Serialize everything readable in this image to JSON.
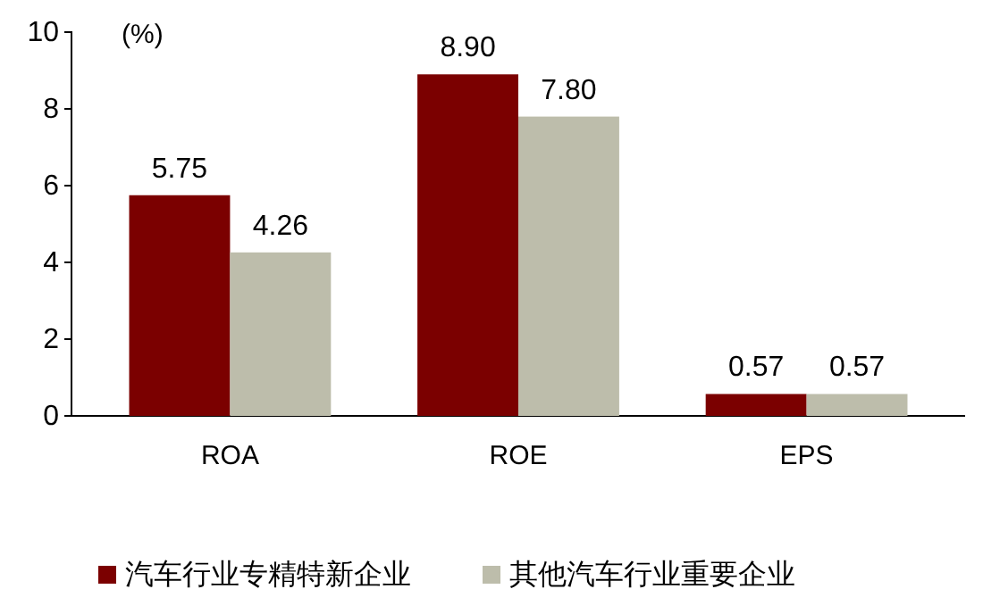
{
  "chart_data": {
    "type": "bar",
    "ylabel": "(%)",
    "categories": [
      "ROA",
      "ROE",
      "EPS"
    ],
    "series": [
      {
        "name": "汽车行业专精特新企业",
        "color": "#7b0000",
        "values": [
          5.75,
          8.9,
          0.57
        ],
        "value_labels": [
          "5.75",
          "8.90",
          "0.57"
        ]
      },
      {
        "name": "其他汽车行业重要企业",
        "color": "#bdbdab",
        "values": [
          4.26,
          7.8,
          0.57
        ],
        "value_labels": [
          "4.26",
          "7.80",
          "0.57"
        ]
      }
    ],
    "ylim": [
      0,
      10
    ],
    "yticks": [
      0,
      2,
      4,
      6,
      8,
      10
    ],
    "legend": "bottom",
    "grid": false
  }
}
